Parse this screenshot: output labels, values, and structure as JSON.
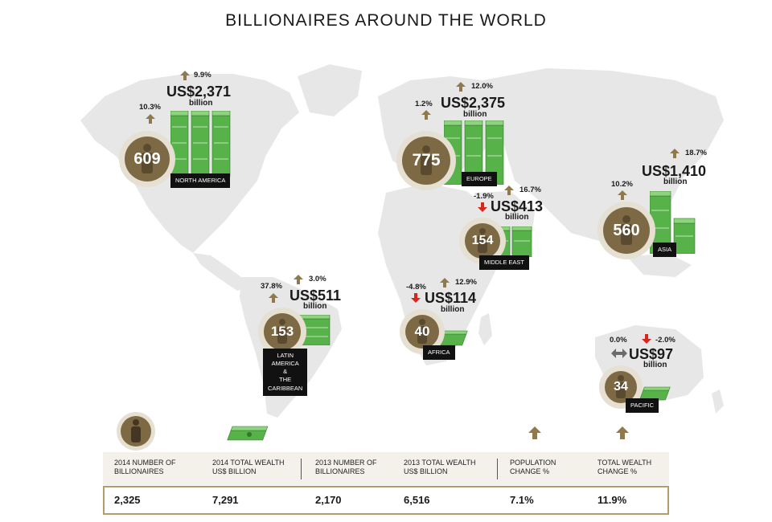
{
  "title": "BILLIONAIRES AROUND THE WORLD",
  "colors": {
    "gold": "#7d6a45",
    "halo": "#e6e0d2",
    "money": "#58b24a",
    "up": "#8f7a4f",
    "down": "#d9261c",
    "flat": "#6b6b6b",
    "map": "#e7e7e7"
  },
  "chart_data": {
    "type": "table",
    "title": "BILLIONAIRES AROUND THE WORLD",
    "regions": [
      {
        "key": "north_america",
        "name": "NORTH AMERICA",
        "billionaires": 609,
        "wealth": "US$2,371",
        "unit": "billion",
        "pop_change": "10.3%",
        "pop_dir": "up",
        "wealth_change": "9.9%",
        "wealth_dir": "up"
      },
      {
        "key": "europe",
        "name": "EUROPE",
        "billionaires": 775,
        "wealth": "US$2,375",
        "unit": "billion",
        "pop_change": "1.2%",
        "pop_dir": "up",
        "wealth_change": "12.0%",
        "wealth_dir": "up"
      },
      {
        "key": "middle_east",
        "name": "MIDDLE EAST",
        "billionaires": 154,
        "wealth": "US$413",
        "unit": "billion",
        "pop_change": "-1.9%",
        "pop_dir": "down",
        "wealth_change": "16.7%",
        "wealth_dir": "up"
      },
      {
        "key": "asia",
        "name": "ASIA",
        "billionaires": 560,
        "wealth": "US$1,410",
        "unit": "billion",
        "pop_change": "10.2%",
        "pop_dir": "up",
        "wealth_change": "18.7%",
        "wealth_dir": "up"
      },
      {
        "key": "latin_america",
        "name": "LATIN AMERICA\n&\nTHE CARIBBEAN",
        "billionaires": 153,
        "wealth": "US$511",
        "unit": "billion",
        "pop_change": "37.8%",
        "pop_dir": "up",
        "wealth_change": "3.0%",
        "wealth_dir": "up"
      },
      {
        "key": "africa",
        "name": "AFRICA",
        "billionaires": 40,
        "wealth": "US$114",
        "unit": "billion",
        "pop_change": "-4.8%",
        "pop_dir": "down",
        "wealth_change": "12.9%",
        "wealth_dir": "up"
      },
      {
        "key": "pacific",
        "name": "PACIFIC",
        "billionaires": 34,
        "wealth": "US$97",
        "unit": "billion",
        "pop_change": "0.0%",
        "pop_dir": "flat",
        "wealth_change": "-2.0%",
        "wealth_dir": "down"
      }
    ],
    "summary": {
      "headers": [
        "2014 NUMBER OF\nBILLIONAIRES",
        "2014 TOTAL WEALTH\nUS$ BILLION",
        "2013 NUMBER OF\nBILLIONAIRES",
        "2013 TOTAL WEALTH\nUS$ BILLION",
        "POPULATION\nCHANGE %",
        "TOTAL WEALTH\nCHANGE %"
      ],
      "values": [
        "2,325",
        "7,291",
        "2,170",
        "6,516",
        "7.1%",
        "11.9%"
      ]
    }
  }
}
